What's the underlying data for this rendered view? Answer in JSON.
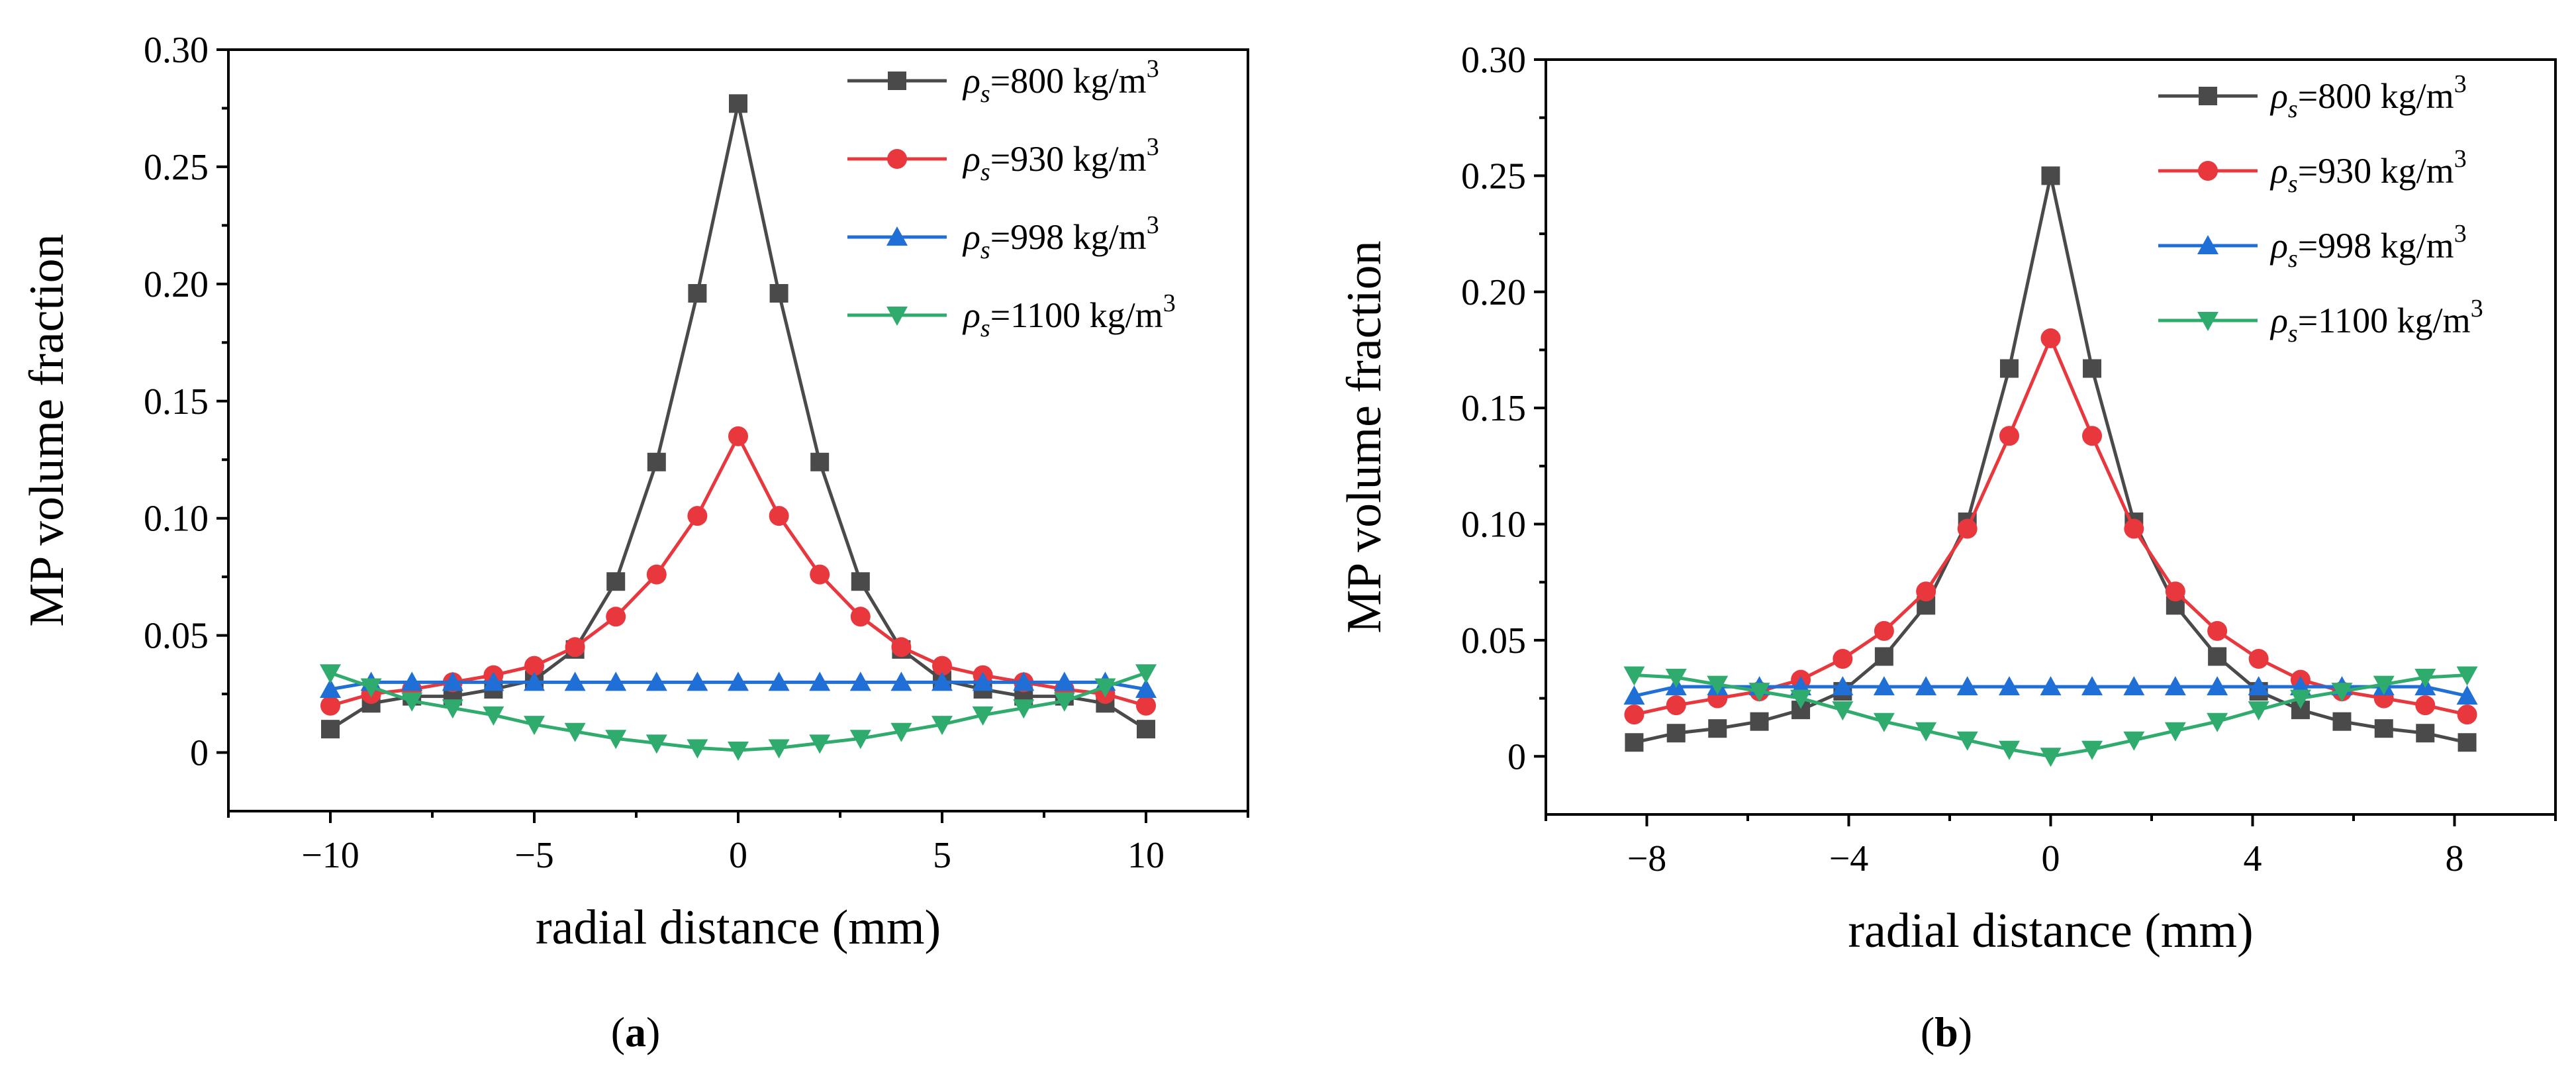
{
  "chart_data": [
    {
      "panel": "a",
      "type": "line",
      "xlabel": "radial distance (mm)",
      "ylabel": "MP volume fraction",
      "xlim": [
        -12.5,
        12.5
      ],
      "ylim": [
        -0.025,
        0.3
      ],
      "xticks": [
        -10,
        -5,
        0,
        5,
        10
      ],
      "xtick_labels": [
        "−10",
        "−5",
        "0",
        "5",
        "10"
      ],
      "yticks": [
        0,
        0.05,
        0.1,
        0.15,
        0.2,
        0.25,
        0.3
      ],
      "ytick_labels": [
        "0",
        "0.05",
        "0.10",
        "0.15",
        "0.20",
        "0.25",
        "0.30"
      ],
      "x": [
        -10,
        -9,
        -8,
        -7,
        -6,
        -5,
        -4,
        -3,
        -2,
        -1,
        0,
        1,
        2,
        3,
        4,
        5,
        6,
        7,
        8,
        9,
        10
      ],
      "series": [
        {
          "name": "ρs=800 kg/m3",
          "rho": "800",
          "color": "#4a4a4a",
          "marker": "square",
          "values": [
            0.01,
            0.021,
            0.024,
            0.024,
            0.027,
            0.031,
            0.044,
            0.073,
            0.124,
            0.196,
            0.277,
            0.196,
            0.124,
            0.073,
            0.044,
            0.031,
            0.027,
            0.024,
            0.024,
            0.021,
            0.01
          ]
        },
        {
          "name": "ρs=930 kg/m3",
          "rho": "930",
          "color": "#e8383d",
          "marker": "circle",
          "values": [
            0.02,
            0.025,
            0.027,
            0.03,
            0.033,
            0.037,
            0.045,
            0.058,
            0.076,
            0.101,
            0.135,
            0.101,
            0.076,
            0.058,
            0.045,
            0.037,
            0.033,
            0.03,
            0.027,
            0.025,
            0.02
          ]
        },
        {
          "name": "ρs=998 kg/m3",
          "rho": "998",
          "color": "#1f6fd6",
          "marker": "triangle-up",
          "values": [
            0.027,
            0.03,
            0.03,
            0.03,
            0.03,
            0.03,
            0.03,
            0.03,
            0.03,
            0.03,
            0.03,
            0.03,
            0.03,
            0.03,
            0.03,
            0.03,
            0.03,
            0.03,
            0.03,
            0.03,
            0.027
          ]
        },
        {
          "name": "ρs=1100 kg/m3",
          "rho": "1100",
          "color": "#2fab6e",
          "marker": "triangle-down",
          "values": [
            0.034,
            0.028,
            0.022,
            0.019,
            0.016,
            0.012,
            0.009,
            0.006,
            0.004,
            0.002,
            0.001,
            0.002,
            0.004,
            0.006,
            0.009,
            0.012,
            0.016,
            0.019,
            0.022,
            0.028,
            0.034
          ]
        }
      ]
    },
    {
      "panel": "b",
      "type": "line",
      "xlabel": "radial distance (mm)",
      "ylabel": "MP volume fraction",
      "xlim": [
        -10,
        10
      ],
      "ylim": [
        -0.025,
        0.3
      ],
      "xticks": [
        -8,
        -4,
        0,
        4,
        8
      ],
      "xtick_labels": [
        "−8",
        "−4",
        "0",
        "4",
        "8"
      ],
      "yticks": [
        0,
        0.05,
        0.1,
        0.15,
        0.2,
        0.25,
        0.3
      ],
      "ytick_labels": [
        "0",
        "0.05",
        "0.10",
        "0.15",
        "0.20",
        "0.25",
        "0.30"
      ],
      "x": [
        -8.25,
        -7.42,
        -6.6,
        -5.77,
        -4.95,
        -4.12,
        -3.3,
        -2.47,
        -1.65,
        -0.82,
        0,
        0.82,
        1.65,
        2.47,
        3.3,
        4.12,
        4.95,
        5.77,
        6.6,
        7.42,
        8.25
      ],
      "series": [
        {
          "name": "ρs=800 kg/m3",
          "rho": "800",
          "color": "#4a4a4a",
          "marker": "square",
          "values": [
            0.006,
            0.01,
            0.012,
            0.015,
            0.02,
            0.028,
            0.043,
            0.065,
            0.101,
            0.167,
            0.25,
            0.167,
            0.101,
            0.065,
            0.043,
            0.028,
            0.02,
            0.015,
            0.012,
            0.01,
            0.006
          ]
        },
        {
          "name": "ρs=930 kg/m3",
          "rho": "930",
          "color": "#e8383d",
          "marker": "circle",
          "values": [
            0.018,
            0.022,
            0.025,
            0.028,
            0.033,
            0.042,
            0.054,
            0.071,
            0.098,
            0.138,
            0.18,
            0.138,
            0.098,
            0.071,
            0.054,
            0.042,
            0.033,
            0.028,
            0.025,
            0.022,
            0.018
          ]
        },
        {
          "name": "ρs=998 kg/m3",
          "rho": "998",
          "color": "#1f6fd6",
          "marker": "triangle-up",
          "values": [
            0.026,
            0.03,
            0.03,
            0.03,
            0.03,
            0.03,
            0.03,
            0.03,
            0.03,
            0.03,
            0.03,
            0.03,
            0.03,
            0.03,
            0.03,
            0.03,
            0.03,
            0.03,
            0.03,
            0.03,
            0.026
          ]
        },
        {
          "name": "ρs=1100 kg/m3",
          "rho": "1100",
          "color": "#2fab6e",
          "marker": "triangle-down",
          "values": [
            0.035,
            0.034,
            0.031,
            0.028,
            0.025,
            0.02,
            0.015,
            0.011,
            0.007,
            0.003,
            0.0,
            0.003,
            0.007,
            0.011,
            0.015,
            0.02,
            0.025,
            0.028,
            0.031,
            0.034,
            0.035
          ]
        }
      ]
    }
  ],
  "legend_unit": " kg/m",
  "legend_exponent": "3",
  "legend_symbol": "ρ",
  "legend_subscript": "s",
  "panel_labels": [
    "a",
    "b"
  ]
}
